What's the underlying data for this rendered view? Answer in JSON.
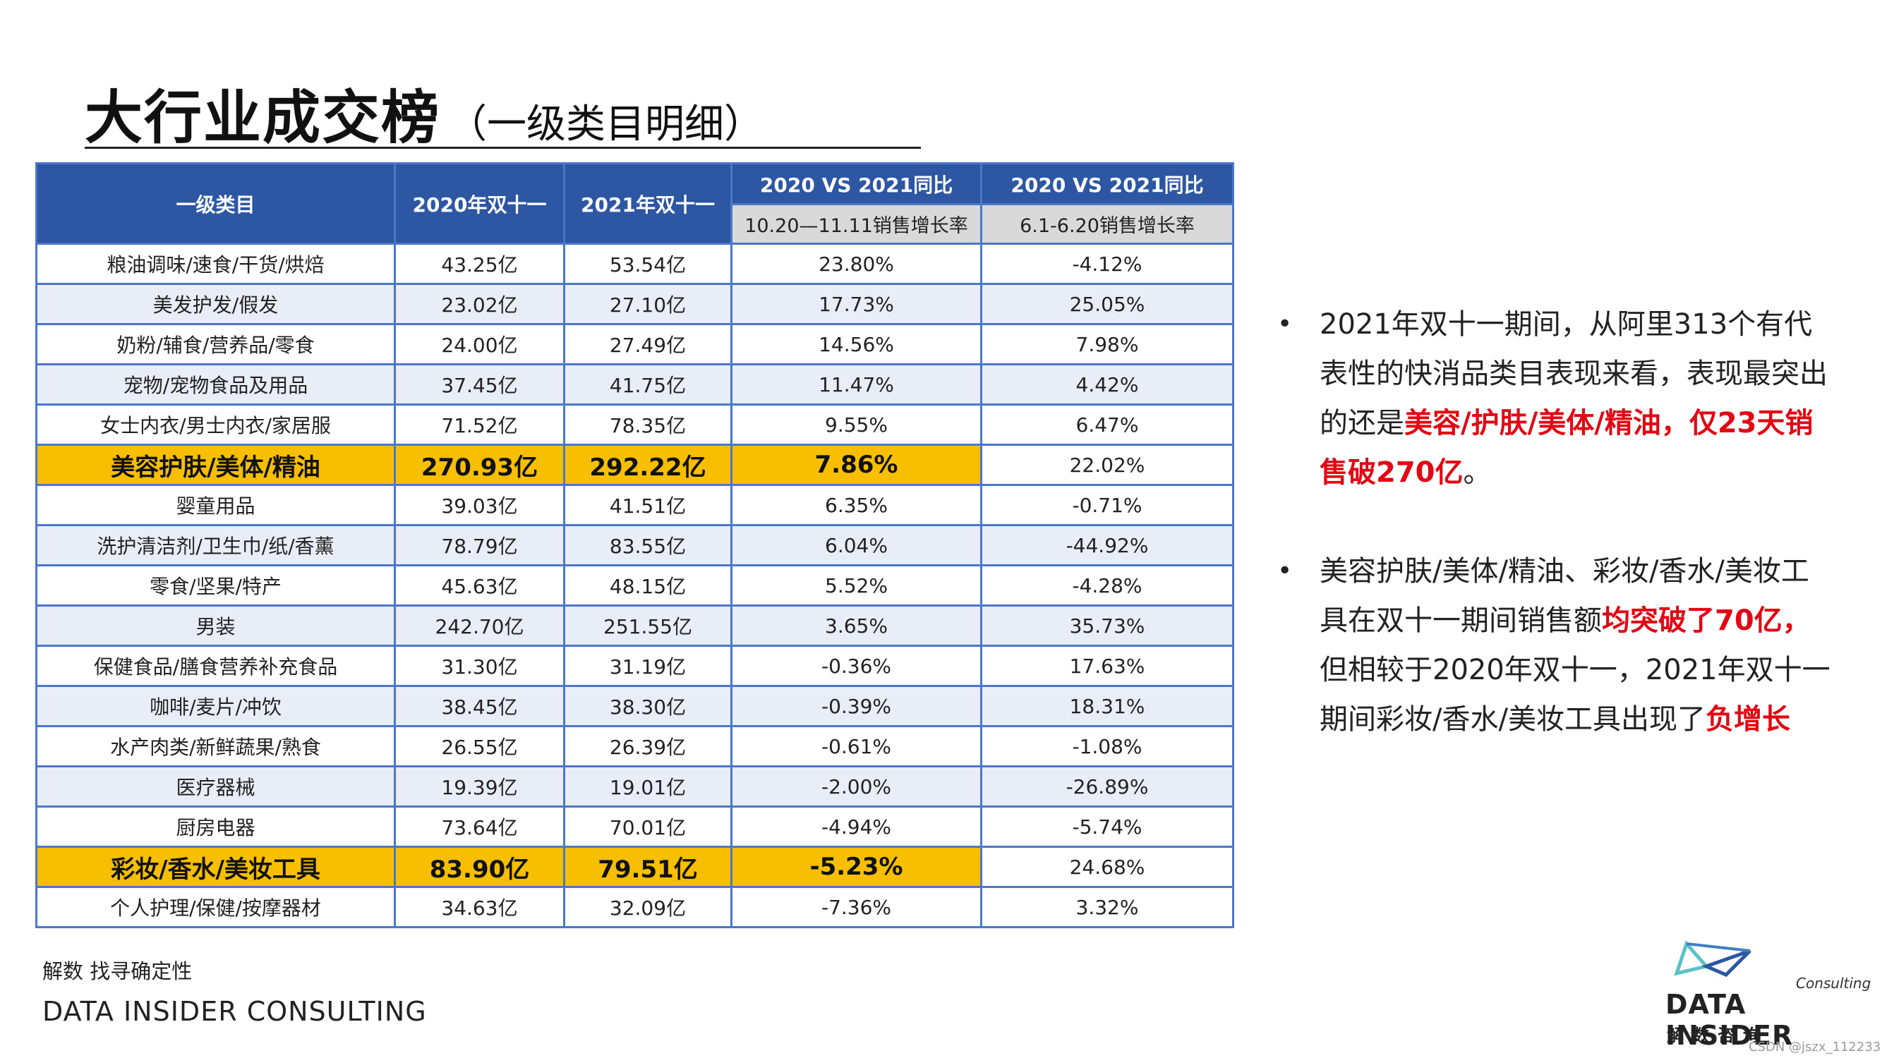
{
  "title": {
    "main": "大行业成交榜",
    "sub": "（一级类目明细）"
  },
  "table": {
    "headers": {
      "category": "一级类目",
      "y2020": "2020年双十一",
      "y2021": "2021年双十一",
      "cmp1": "2020 VS 2021同比",
      "cmp1_sub": "10.20—11.11销售增长率",
      "cmp2": "2020 VS 2021同比",
      "cmp2_sub": "6.1-6.20销售增长率"
    },
    "rows": [
      {
        "name": "粮油调味/速食/干货/烘焙",
        "v2020": "43.25亿",
        "v2021": "53.54亿",
        "g1": "23.80%",
        "g2": "-4.12%"
      },
      {
        "name": "美发护发/假发",
        "v2020": "23.02亿",
        "v2021": "27.10亿",
        "g1": "17.73%",
        "g2": "25.05%"
      },
      {
        "name": "奶粉/辅食/营养品/零食",
        "v2020": "24.00亿",
        "v2021": "27.49亿",
        "g1": "14.56%",
        "g2": "7.98%"
      },
      {
        "name": "宠物/宠物食品及用品",
        "v2020": "37.45亿",
        "v2021": "41.75亿",
        "g1": "11.47%",
        "g2": "4.42%"
      },
      {
        "name": "女士内衣/男士内衣/家居服",
        "v2020": "71.52亿",
        "v2021": "78.35亿",
        "g1": "9.55%",
        "g2": "6.47%"
      },
      {
        "name": "美容护肤/美体/精油",
        "v2020": "270.93亿",
        "v2021": "292.22亿",
        "g1": "7.86%",
        "g2": "22.02%"
      },
      {
        "name": "婴童用品",
        "v2020": "39.03亿",
        "v2021": "41.51亿",
        "g1": "6.35%",
        "g2": "-0.71%"
      },
      {
        "name": "洗护清洁剂/卫生巾/纸/香薰",
        "v2020": "78.79亿",
        "v2021": "83.55亿",
        "g1": "6.04%",
        "g2": "-44.92%"
      },
      {
        "name": "零食/坚果/特产",
        "v2020": "45.63亿",
        "v2021": "48.15亿",
        "g1": "5.52%",
        "g2": "-4.28%"
      },
      {
        "name": "男装",
        "v2020": "242.70亿",
        "v2021": "251.55亿",
        "g1": "3.65%",
        "g2": "35.73%"
      },
      {
        "name": "保健食品/膳食营养补充食品",
        "v2020": "31.30亿",
        "v2021": "31.19亿",
        "g1": "-0.36%",
        "g2": "17.63%"
      },
      {
        "name": "咖啡/麦片/冲饮",
        "v2020": "38.45亿",
        "v2021": "38.30亿",
        "g1": "-0.39%",
        "g2": "18.31%"
      },
      {
        "name": "水产肉类/新鲜蔬果/熟食",
        "v2020": "26.55亿",
        "v2021": "26.39亿",
        "g1": "-0.61%",
        "g2": "-1.08%"
      },
      {
        "name": "医疗器械",
        "v2020": "19.39亿",
        "v2021": "19.01亿",
        "g1": "-2.00%",
        "g2": "-26.89%"
      },
      {
        "name": "厨房电器",
        "v2020": "73.64亿",
        "v2021": "70.01亿",
        "g1": "-4.94%",
        "g2": "-5.74%"
      },
      {
        "name": "彩妆/香水/美妆工具",
        "v2020": "83.90亿",
        "v2021": "79.51亿",
        "g1": "-5.23%",
        "g2": "24.68%"
      },
      {
        "name": "个人护理/保健/按摩器材",
        "v2020": "34.63亿",
        "v2021": "32.09亿",
        "g1": "-7.36%",
        "g2": "3.32%"
      }
    ]
  },
  "notes": {
    "bullet": "•",
    "n1_a": "2021年双十一期间，从阿里313个有代表性的快消品类目表现来看，表现最突出的还是",
    "n1_b": "美容/护肤/美体/精油，仅23天销售破270亿",
    "n1_c": "。",
    "n2_a": "美容护肤/美体/精油、彩妆/香水/美妆工具在双十一期间销售额",
    "n2_b": "均突破了70亿，",
    "n2_c": "但相较于2020年双十一，2021年双十一期间彩妆/香水/美妆工具出现了",
    "n2_d": "负增长"
  },
  "footer": {
    "cn": "解数 找寻确定性",
    "en": "DATA INSIDER CONSULTING"
  },
  "logo": {
    "consulting": "Consulting",
    "main": "DATA INSIDER",
    "cn": "解数咨询"
  },
  "watermark": "CSDN @jszx_112233",
  "colors": {
    "header_blue": "#2d56a3",
    "border_blue": "#4a78c9",
    "highlight": "#f7bf00",
    "accent_red": "#e30613",
    "alt_row": "#e8edf7"
  }
}
